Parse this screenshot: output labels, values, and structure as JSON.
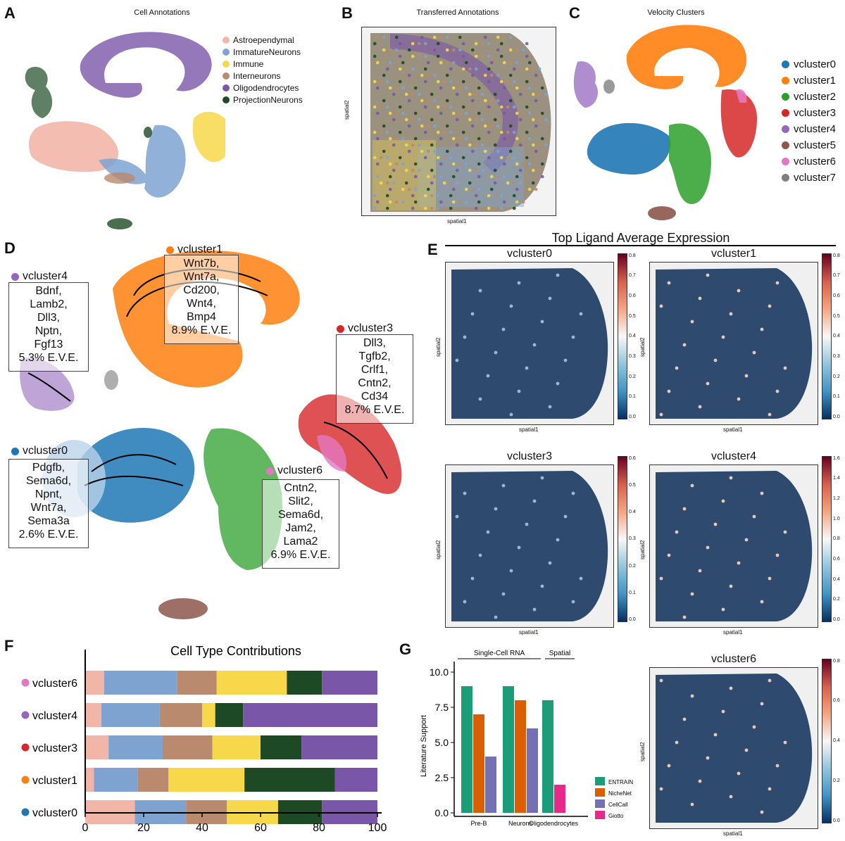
{
  "panels": {
    "A": {
      "letter": "A",
      "title": "Cell Annotations",
      "legend": [
        {
          "label": "Astroependymal",
          "color": "#f2b6a8"
        },
        {
          "label": "ImmatureNeurons",
          "color": "#7ea3d1"
        },
        {
          "label": "Immune",
          "color": "#f7d84a"
        },
        {
          "label": "Interneurons",
          "color": "#b98a6e"
        },
        {
          "label": "Oligodendrocytes",
          "color": "#7a56a8"
        },
        {
          "label": "ProjectionNeurons",
          "color": "#1d4a24"
        }
      ]
    },
    "B": {
      "letter": "B",
      "title": "Transferred Annotations",
      "xlabel": "spatial1",
      "ylabel": "spatial2"
    },
    "C": {
      "letter": "C",
      "title": "Velocity Clusters",
      "legend": [
        {
          "label": "vcluster0",
          "color": "#1f77b4"
        },
        {
          "label": "vcluster1",
          "color": "#ff7f0e"
        },
        {
          "label": "vcluster2",
          "color": "#2ca02c"
        },
        {
          "label": "vcluster3",
          "color": "#d62728"
        },
        {
          "label": "vcluster4",
          "color": "#9467bd"
        },
        {
          "label": "vcluster5",
          "color": "#8c564b"
        },
        {
          "label": "vcluster6",
          "color": "#e377c2"
        },
        {
          "label": "vcluster7",
          "color": "#7f7f7f"
        }
      ]
    },
    "D": {
      "letter": "D",
      "annotations": [
        {
          "cluster": "vcluster1",
          "color": "#ff7f0e",
          "text": "Wnt7b,\nWnt7a,\nCd200,\nWnt4,\nBmp4\n8.9% E.V.E."
        },
        {
          "cluster": "vcluster4",
          "color": "#9467bd",
          "text": "Bdnf,\nLamb2,\nDll3,\nNptn,\nFgf13\n5.3% E.V.E."
        },
        {
          "cluster": "vcluster3",
          "color": "#d62728",
          "text": "Dll3,\nTgfb2,\nCrlf1,\nCntn2,\nCd34\n8.7% E.V.E."
        },
        {
          "cluster": "vcluster0",
          "color": "#1f77b4",
          "text": "Pdgfb,\nSema6d,\nNpnt,\nWnt7a,\nSema3a\n2.6% E.V.E."
        },
        {
          "cluster": "vcluster6",
          "color": "#e377c2",
          "text": "Cntn2,\nSlit2,\nSema6d,\nJam2,\nLama2\n6.9% E.V.E."
        }
      ]
    },
    "E": {
      "letter": "E",
      "title": "Top Ligand Average Expression",
      "maps": [
        {
          "title": "vcluster0",
          "ticks": [
            "0.0",
            "0.1",
            "0.2",
            "0.3",
            "0.4",
            "0.5",
            "0.6",
            "0.7",
            "0.8"
          ]
        },
        {
          "title": "vcluster1",
          "ticks": [
            "0.0",
            "0.1",
            "0.2",
            "0.3",
            "0.4",
            "0.5",
            "0.6",
            "0.7",
            "0.8"
          ]
        },
        {
          "title": "vcluster3",
          "ticks": [
            "0.0",
            "0.1",
            "0.2",
            "0.3",
            "0.4",
            "0.5",
            "0.6"
          ]
        },
        {
          "title": "vcluster4",
          "ticks": [
            "0.0",
            "0.2",
            "0.4",
            "0.6",
            "0.8",
            "1.0",
            "1.2",
            "1.4",
            "1.6"
          ]
        },
        {
          "title": "vcluster6",
          "ticks": [
            "0.0",
            "0.2",
            "0.4",
            "0.6",
            "0.8"
          ]
        }
      ],
      "xlabel": "spatial1",
      "ylabel": "spatial2"
    },
    "F": {
      "letter": "F"
    },
    "G": {
      "letter": "G",
      "group_labels": [
        "Single-Cell RNA",
        "Spatial"
      ]
    }
  },
  "chart_data": [
    {
      "type": "bar",
      "orientation": "horizontal-stacked",
      "title": "Cell Type Contributions",
      "categories": [
        "vcluster6",
        "vcluster4",
        "vcluster3",
        "vcluster1",
        "vcluster0"
      ],
      "category_colors": [
        "#e377c2",
        "#9467bd",
        "#d62728",
        "#ff7f0e",
        "#1f77b4"
      ],
      "xlim": [
        0,
        100
      ],
      "xticks": [
        "0",
        "20",
        "40",
        "60",
        "80",
        "100"
      ],
      "series": [
        {
          "name": "Astroependymal",
          "color": "#f2b6a8",
          "values": [
            6.5,
            5.5,
            8,
            3,
            17
          ]
        },
        {
          "name": "ImmatureNeurons",
          "color": "#7ea3d1",
          "values": [
            25,
            20,
            18.5,
            15,
            17.5
          ]
        },
        {
          "name": "Interneurons",
          "color": "#b98a6e",
          "values": [
            13.5,
            14.5,
            17,
            10.5,
            14
          ]
        },
        {
          "name": "Immune",
          "color": "#f7d84a",
          "values": [
            24,
            4.5,
            16.5,
            26,
            17.5
          ]
        },
        {
          "name": "ProjectionNeurons",
          "color": "#1d4a24",
          "values": [
            12,
            9.5,
            14,
            31,
            15
          ]
        },
        {
          "name": "Oligodendrocytes",
          "color": "#7a56a8",
          "values": [
            19,
            46,
            26,
            14.5,
            19
          ]
        }
      ]
    },
    {
      "type": "bar",
      "title": "",
      "ylabel": "Literature Support",
      "categories": [
        "Pre-B",
        "Neurons",
        "Oligodendrocytes"
      ],
      "ylim": [
        0,
        10
      ],
      "yticks": [
        "0.0",
        "2.5",
        "5.0",
        "7.5",
        "10.0"
      ],
      "series": [
        {
          "name": "ENTRAIN",
          "color": "#1b9e77",
          "values": [
            9,
            9,
            8
          ]
        },
        {
          "name": "NicheNet",
          "color": "#d95f02",
          "values": [
            7,
            8,
            null
          ]
        },
        {
          "name": "CellCall",
          "color": "#7570b3",
          "values": [
            4,
            6,
            null
          ]
        },
        {
          "name": "Giotto",
          "color": "#e7298a",
          "values": [
            null,
            null,
            2
          ]
        }
      ]
    }
  ]
}
